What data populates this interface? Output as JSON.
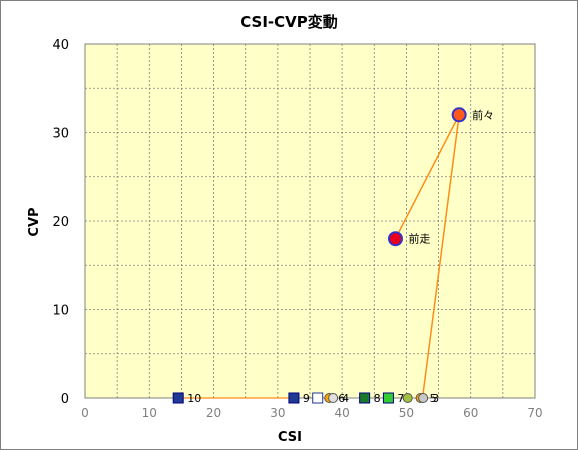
{
  "chart_data": {
    "type": "scatter",
    "title": "CSI-CVP変動",
    "xlabel": "CSI",
    "ylabel": "CVP",
    "xlim": [
      0,
      70
    ],
    "ylim": [
      0,
      40
    ],
    "xticks": [
      0,
      10,
      20,
      30,
      40,
      50,
      60,
      70
    ],
    "yticks": [
      0,
      10,
      20,
      30,
      40
    ],
    "grid": true,
    "plot_background": "#ffffc8",
    "line_color": "#ff8c1a",
    "line_path": [
      {
        "x": 14.5,
        "y": 0
      },
      {
        "x": 32.5,
        "y": 0
      }
    ],
    "triangle_path": [
      {
        "x": 52.5,
        "y": 0
      },
      {
        "x": 58.2,
        "y": 32
      },
      {
        "x": 48.3,
        "y": 18
      }
    ],
    "points": [
      {
        "label": "10",
        "x": 14.5,
        "y": 0,
        "marker": "square",
        "fill": "#1f3a93",
        "stroke": "#000080"
      },
      {
        "label": "9",
        "x": 32.5,
        "y": 0,
        "marker": "square",
        "fill": "#1f3a93",
        "stroke": "#000080"
      },
      {
        "label": "",
        "x": 36.2,
        "y": 0,
        "marker": "square",
        "fill": "#ffffff",
        "stroke": "#1f3a93"
      },
      {
        "label": "6",
        "x": 38.0,
        "y": 0,
        "marker": "circle",
        "fill": "#ffa500",
        "stroke": "#555555"
      },
      {
        "label": "4",
        "x": 38.6,
        "y": 0,
        "marker": "circle",
        "fill": "#e0e0e0",
        "stroke": "#555555"
      },
      {
        "label": "8",
        "x": 43.5,
        "y": 0,
        "marker": "square",
        "fill": "#1a7a2a",
        "stroke": "#000080"
      },
      {
        "label": "7",
        "x": 47.2,
        "y": 0,
        "marker": "square",
        "fill": "#33cc33",
        "stroke": "#000080"
      },
      {
        "label": "",
        "x": 50.2,
        "y": 0,
        "marker": "circle",
        "fill": "#a0c040",
        "stroke": "#555555"
      },
      {
        "label": "5",
        "x": 52.2,
        "y": 0,
        "marker": "circle",
        "fill": "#ffa500",
        "stroke": "#555555"
      },
      {
        "label": "3",
        "x": 52.6,
        "y": 0,
        "marker": "circle",
        "fill": "#c8c8c8",
        "stroke": "#555555"
      },
      {
        "label": "前々",
        "x": 58.2,
        "y": 32,
        "marker": "circle-large",
        "fill": "#ff5a1a",
        "stroke": "#3333cc"
      },
      {
        "label": "前走",
        "x": 48.3,
        "y": 18,
        "marker": "circle-large",
        "fill": "#e8001c",
        "stroke": "#3333cc"
      }
    ]
  }
}
